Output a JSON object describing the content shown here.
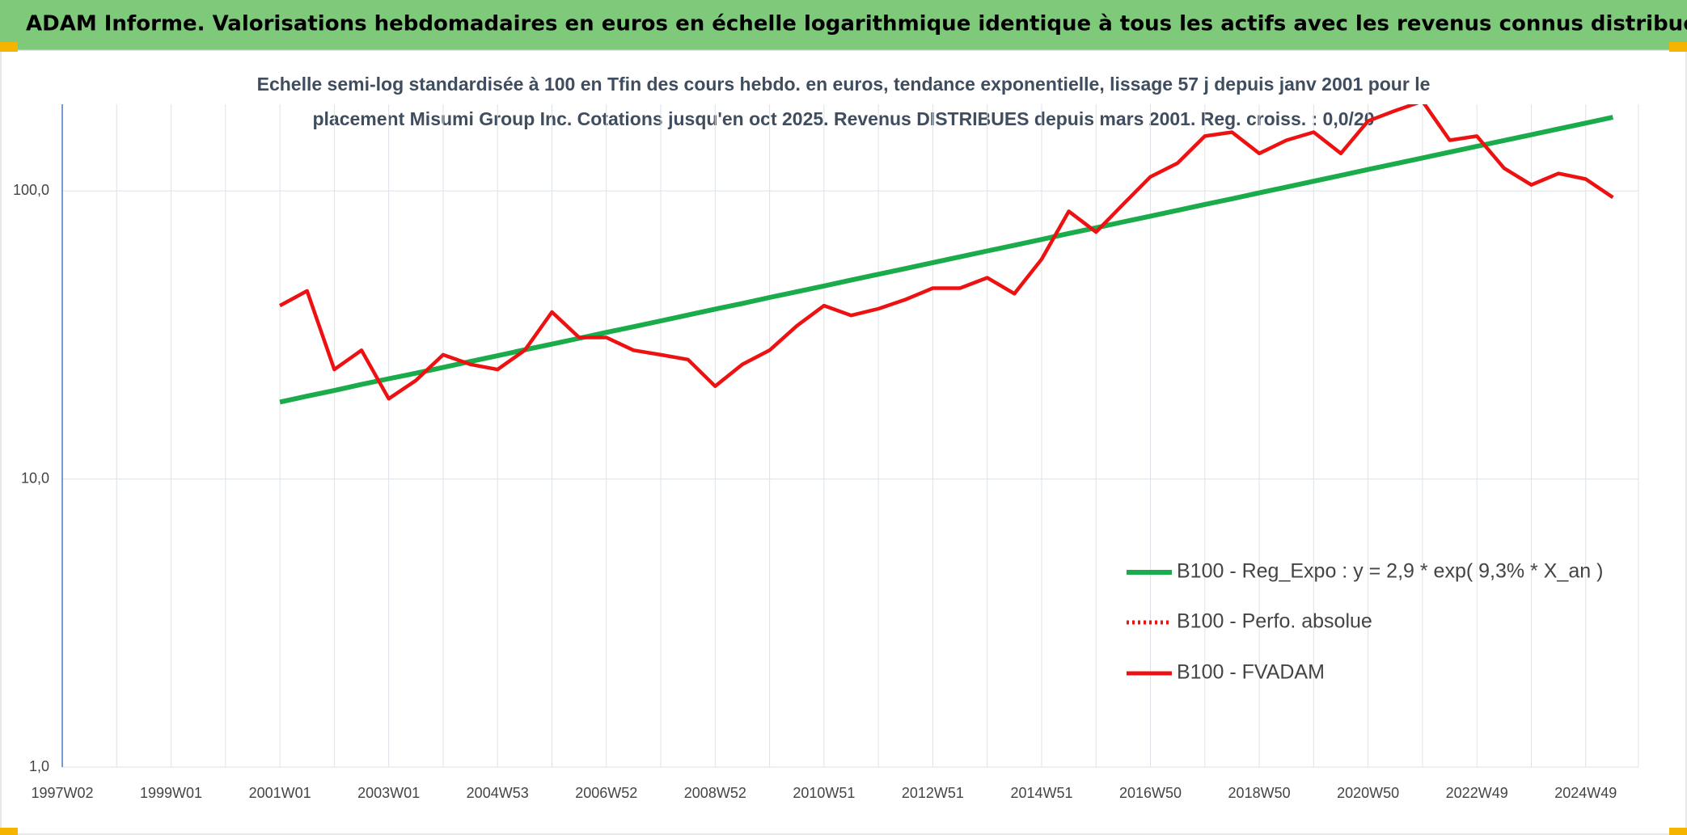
{
  "chart_data": {
    "type": "line",
    "title": "ADAM Informe. Valorisations hebdomadaires en euros en échelle logarithmique identique à tous les actifs avec les revenus connus distribués",
    "subtitle": [
      "Echelle semi-log standardisée à 100 en Tfin des cours hebdo. en euros, tendance exponentielle, lissage 57 j depuis janv 2001 pour le",
      "placement Misumi Group Inc. Cotations jusqu'en oct 2025. Revenus DISTRIBUES depuis mars 2001. Reg. croiss. : 0,0/20"
    ],
    "categories": [
      "1997W02",
      null,
      null,
      null,
      "1999W01",
      null,
      null,
      null,
      "2001W01",
      null,
      null,
      null,
      "2003W01",
      null,
      null,
      null,
      "2004W53",
      null,
      null,
      null,
      "2006W52",
      null,
      null,
      null,
      "2008W52",
      null,
      null,
      null,
      "2010W51",
      null,
      null,
      null,
      "2012W51",
      null,
      null,
      null,
      "2014W51",
      null,
      null,
      null,
      "2016W50",
      null,
      null,
      null,
      "2018W50",
      null,
      null,
      null,
      "2020W50",
      null,
      null,
      null,
      "2022W49",
      null,
      null,
      null,
      "2024W49",
      null
    ],
    "series": [
      {
        "name": "B100 - Reg_Expo : y = 2,9 * exp( 9,3% *  X_an )",
        "color": "#1aab4a",
        "style": "solid",
        "values": [
          null,
          null,
          null,
          null,
          null,
          null,
          null,
          null,
          18.5,
          19.4,
          20.3,
          21.3,
          22.3,
          23.3,
          24.4,
          25.6,
          26.8,
          28.1,
          29.4,
          30.8,
          32.3,
          33.8,
          35.4,
          37.1,
          38.9,
          40.7,
          42.7,
          44.7,
          46.8,
          49.1,
          51.4,
          53.8,
          56.4,
          59.1,
          61.9,
          64.8,
          67.9,
          71.2,
          74.5,
          78.1,
          81.8,
          85.7,
          89.8,
          94.0,
          98.5,
          103.2,
          108.1,
          113.3,
          118.7,
          124.3,
          130.2,
          136.4,
          142.9,
          149.7,
          156.8,
          164.3,
          172.1,
          180.3
        ]
      },
      {
        "name": "B100 - Perfo. absolue",
        "color": "#ee1111",
        "style": "dotted",
        "values": [
          null,
          null,
          null,
          null,
          null,
          null,
          null,
          null,
          null,
          null,
          null,
          null,
          null,
          null,
          null,
          null,
          null,
          null,
          null,
          null,
          null,
          null,
          null,
          null,
          null,
          null,
          null,
          null,
          null,
          null,
          null,
          null,
          null,
          null,
          null,
          null,
          null,
          null,
          null,
          null,
          null,
          null,
          null,
          null,
          null,
          null,
          null,
          null,
          null,
          null,
          null,
          null,
          null,
          null,
          null,
          null,
          null,
          null
        ]
      },
      {
        "name": "B100 - FVADAM",
        "color": "#ee1111",
        "style": "solid",
        "values": [
          null,
          null,
          null,
          null,
          null,
          null,
          null,
          null,
          40,
          45,
          24,
          28,
          19,
          22,
          27,
          25,
          24,
          28,
          38,
          31,
          31,
          28,
          27,
          26,
          21,
          25,
          28,
          34,
          40,
          37,
          39,
          42,
          46,
          46,
          50,
          44,
          58,
          85,
          72,
          90,
          112,
          125,
          155,
          160,
          135,
          150,
          160,
          135,
          175,
          190,
          205,
          150,
          155,
          120,
          105,
          115,
          110,
          95
        ]
      }
    ],
    "log_scale": true,
    "ylim": [
      1,
      200
    ],
    "yticks": [
      {
        "value": 1,
        "label": "1,0"
      },
      {
        "value": 10,
        "label": "10,0"
      },
      {
        "value": 100,
        "label": "100,0"
      }
    ],
    "grid": true,
    "legend": "right"
  }
}
